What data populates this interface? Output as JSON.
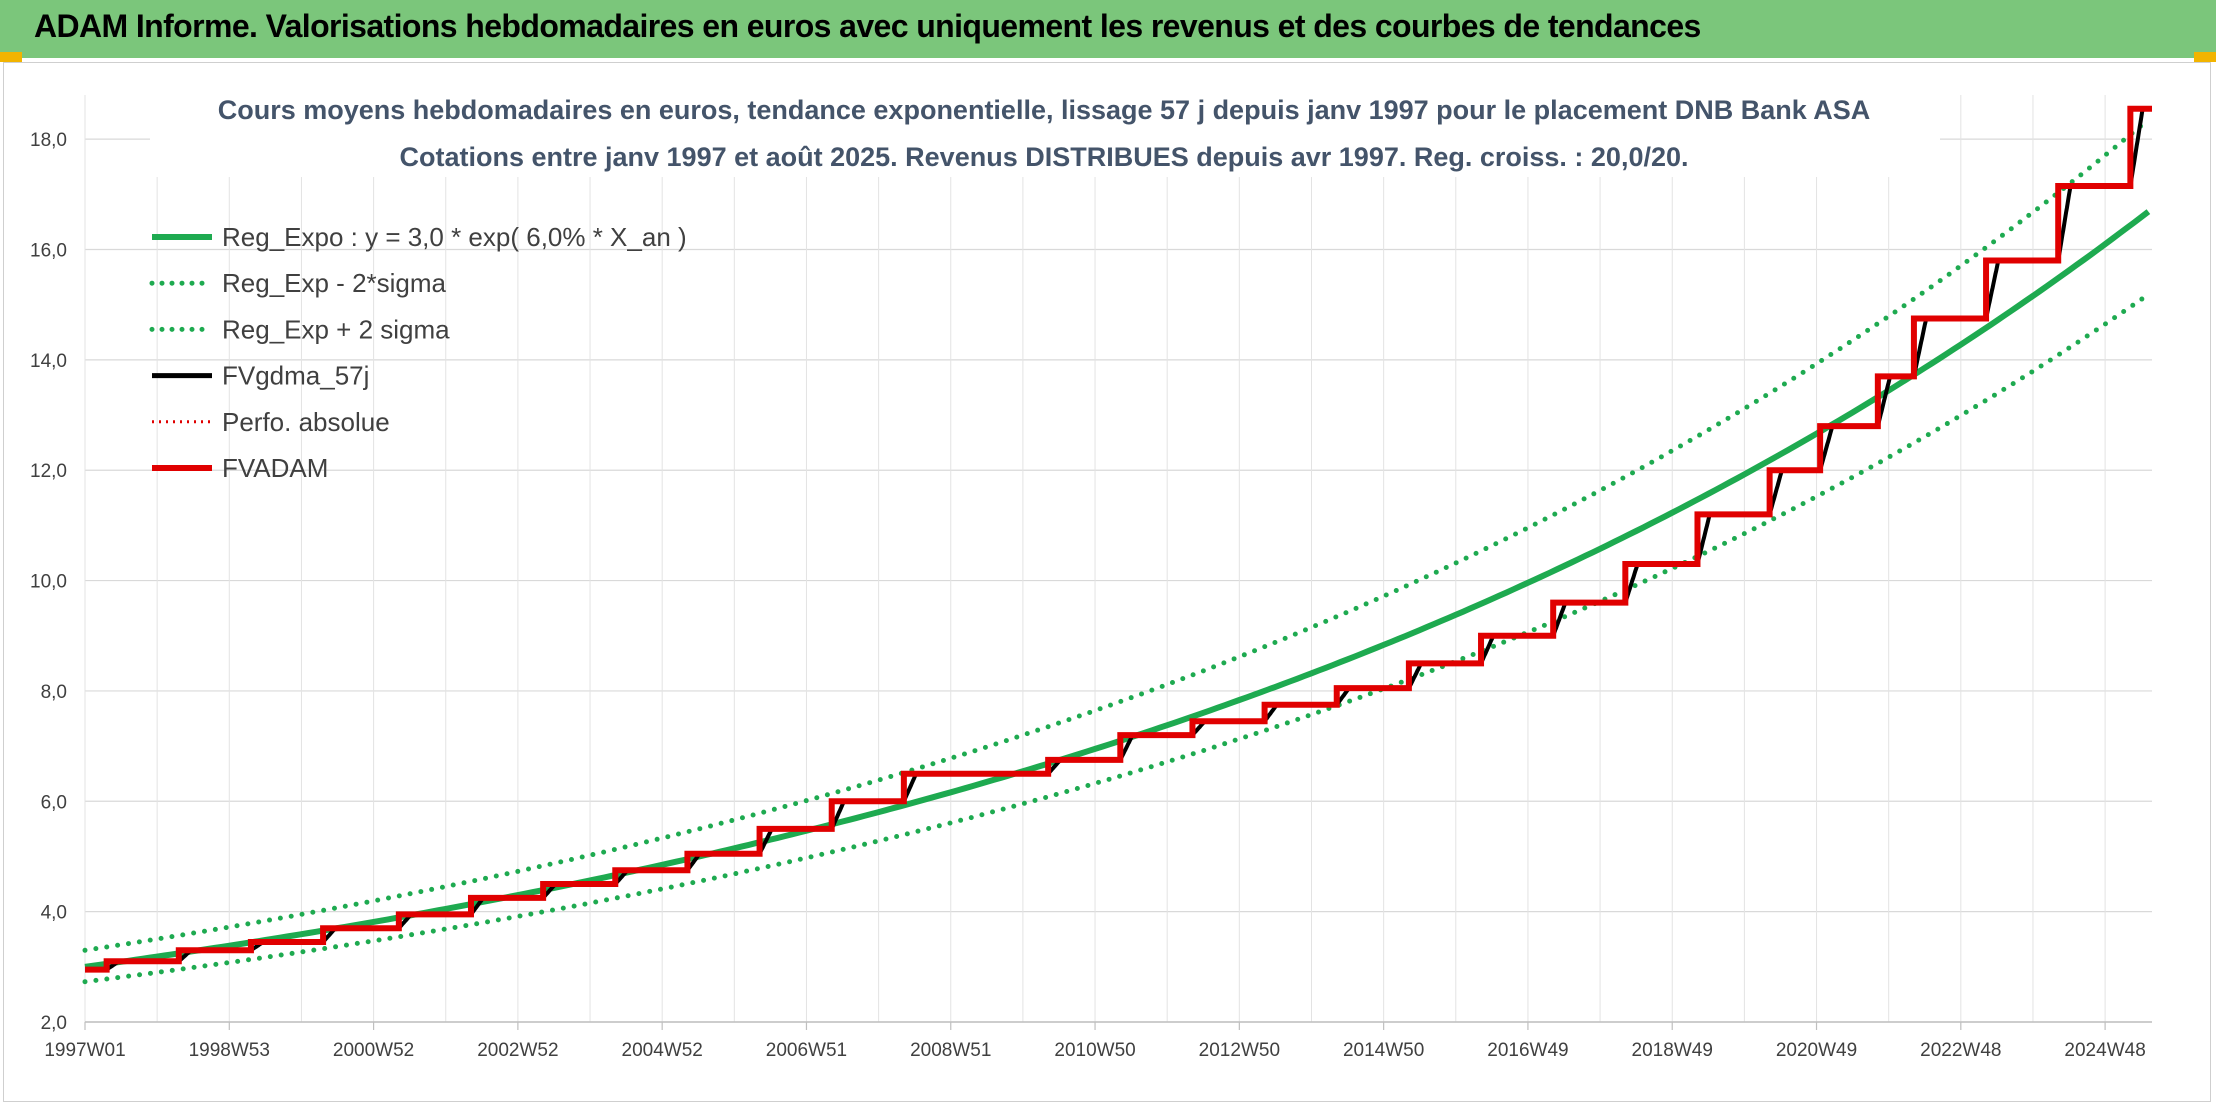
{
  "header": {
    "title": "ADAM Informe. Valorisations hebdomadaires en euros avec uniquement les revenus et des courbes de tendances"
  },
  "chart_data": {
    "type": "line",
    "title_line1": "Cours moyens hebdomadaires en euros, tendance exponentielle, lissage 57 j depuis janv 1997 pour le placement DNB Bank ASA",
    "title_line2": "Cotations entre janv 1997 et août 2025. Revenus DISTRIBUES depuis avr 1997. Reg. croiss. : 20,0/20.",
    "x_tick_labels": [
      "1997W01",
      "1998W53",
      "2000W52",
      "2002W52",
      "2004W52",
      "2006W51",
      "2008W51",
      "2010W50",
      "2012W50",
      "2014W50",
      "2016W49",
      "2018W49",
      "2020W49",
      "2022W48",
      "2024W48"
    ],
    "x_range": [
      1997.0,
      2025.65
    ],
    "y_tick_labels": [
      "2,0",
      "4,0",
      "6,0",
      "8,0",
      "10,0",
      "12,0",
      "14,0",
      "16,0",
      "18,0"
    ],
    "ylim": [
      2.0,
      18.8
    ],
    "grid": true,
    "legend_position": "top-left",
    "series": [
      {
        "name": "Reg_Expo : y = 3,0 * exp( 6,0% *  X_an )",
        "color": "#1eaa50",
        "style": "solid",
        "a": 3.0,
        "r": 0.06
      },
      {
        "name": "Reg_Exp - 2*sigma",
        "color": "#1eaa50",
        "style": "dotted",
        "a": 2.73,
        "r": 0.06
      },
      {
        "name": "Reg_Exp + 2 sigma",
        "color": "#1eaa50",
        "style": "dotted",
        "a": 3.3,
        "r": 0.06
      },
      {
        "name": "FVgdma_57j",
        "color": "#000000",
        "style": "smoothed"
      },
      {
        "name": "Perfo. absolue",
        "color": "#e00000",
        "style": "dotted"
      },
      {
        "name": "FVADAM",
        "color": "#e00000",
        "style": "step"
      }
    ],
    "fvadam_steps": [
      [
        1997.0,
        2.95
      ],
      [
        1997.3,
        3.1
      ],
      [
        1998.3,
        3.3
      ],
      [
        1999.3,
        3.45
      ],
      [
        2000.3,
        3.7
      ],
      [
        2001.35,
        3.95
      ],
      [
        2002.35,
        4.25
      ],
      [
        2003.35,
        4.5
      ],
      [
        2004.35,
        4.75
      ],
      [
        2005.35,
        5.05
      ],
      [
        2006.35,
        5.5
      ],
      [
        2007.35,
        6.0
      ],
      [
        2008.35,
        6.5
      ],
      [
        2010.35,
        6.75
      ],
      [
        2011.35,
        7.2
      ],
      [
        2012.35,
        7.45
      ],
      [
        2013.35,
        7.75
      ],
      [
        2014.35,
        8.05
      ],
      [
        2015.35,
        8.5
      ],
      [
        2016.35,
        9.0
      ],
      [
        2017.35,
        9.6
      ],
      [
        2018.35,
        10.3
      ],
      [
        2019.35,
        11.2
      ],
      [
        2020.35,
        12.0
      ],
      [
        2021.05,
        12.8
      ],
      [
        2021.85,
        13.7
      ],
      [
        2022.35,
        14.75
      ],
      [
        2023.35,
        15.8
      ],
      [
        2024.35,
        17.15
      ],
      [
        2025.35,
        18.55
      ]
    ],
    "fvadam_end_x": 2025.65
  }
}
